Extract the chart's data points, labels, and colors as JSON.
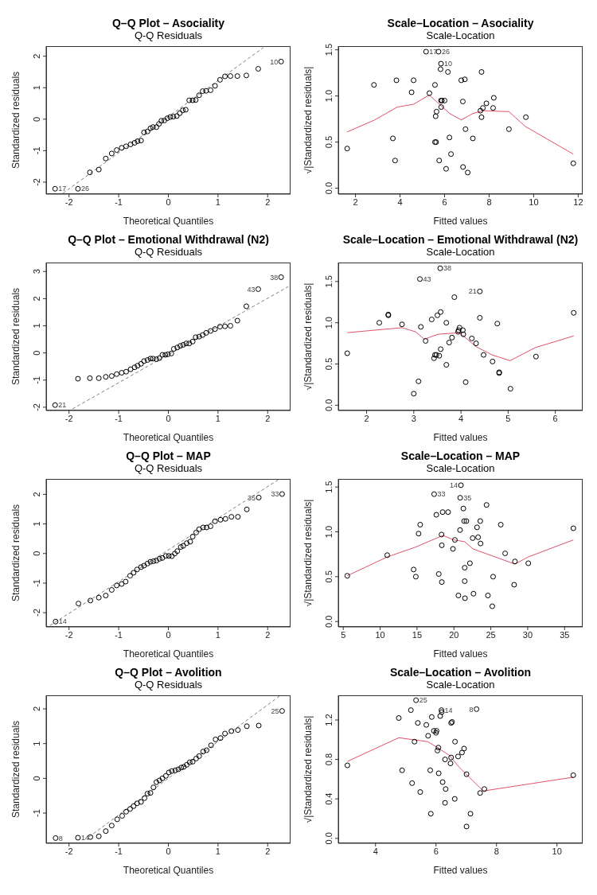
{
  "chart_data": [
    {
      "type": "scatter",
      "title": "Q–Q Plot – Asociality",
      "subtitle": "Q-Q Residuals",
      "xlabel": "Theoretical Quantiles",
      "ylabel": "Standardized residuals",
      "xlim": [
        -2.46,
        2.46
      ],
      "ylim": [
        -2.38,
        2.32
      ],
      "xticks": [
        -2,
        -1,
        0,
        1,
        2
      ],
      "yticks": [
        -2,
        -1,
        0,
        1,
        2
      ],
      "marker": "circle",
      "series": [
        {
          "type": "scatter",
          "color": "#000000",
          "x": [
            -2.28,
            -1.82,
            -1.58,
            -1.4,
            -1.26,
            -1.14,
            -1.04,
            -0.94,
            -0.85,
            -0.76,
            -0.68,
            -0.62,
            -0.55,
            -0.49,
            -0.42,
            -0.36,
            -0.31,
            -0.24,
            -0.19,
            -0.14,
            -0.08,
            -0.02,
            0.04,
            0.1,
            0.17,
            0.23,
            0.29,
            0.35,
            0.42,
            0.49,
            0.55,
            0.62,
            0.69,
            0.76,
            0.85,
            0.94,
            1.04,
            1.14,
            1.25,
            1.39,
            1.57,
            1.81,
            2.27
          ],
          "values": [
            -2.21,
            -2.21,
            -1.69,
            -1.6,
            -1.25,
            -1.09,
            -0.98,
            -0.91,
            -0.86,
            -0.8,
            -0.75,
            -0.7,
            -0.68,
            -0.42,
            -0.39,
            -0.29,
            -0.25,
            -0.25,
            -0.15,
            -0.05,
            -0.04,
            0.03,
            0.07,
            0.08,
            0.1,
            0.19,
            0.28,
            0.3,
            0.6,
            0.6,
            0.61,
            0.76,
            0.89,
            0.9,
            0.92,
            1.06,
            1.25,
            1.36,
            1.37,
            1.37,
            1.39,
            1.6,
            1.83
          ]
        },
        {
          "type": "line",
          "marker": "none",
          "color": "#808080",
          "line_style": "dashed",
          "x": [
            -2.12,
            1.91
          ],
          "values": [
            -2.35,
            2.27
          ]
        }
      ],
      "annotations": [
        {
          "text": "17",
          "x": -2.28,
          "y": -2.21
        },
        {
          "text": "26",
          "x": -1.82,
          "y": -2.21
        },
        {
          "text": "10",
          "x": 2.27,
          "y": 1.83
        }
      ]
    },
    {
      "type": "scatter",
      "title": "Scale–Location – Asociality",
      "subtitle": "Scale-Location",
      "xlabel": "Fitted values",
      "ylabel": "√|Standardized residuals|",
      "xlim": [
        1.23,
        12.2
      ],
      "ylim": [
        -0.064,
        1.54
      ],
      "xticks": [
        2,
        4,
        6,
        8,
        10,
        12
      ],
      "yticks": [
        {
          "value": 0,
          "label": "0.0"
        },
        {
          "value": 0.5,
          "label": "0.5"
        },
        {
          "value": 1,
          "label": "1.0"
        },
        {
          "value": 1.5,
          "label": "1.5"
        }
      ],
      "marker": "circle",
      "series": [
        {
          "type": "scatter",
          "color": "#000000",
          "x": [
            1.63,
            2.83,
            3.68,
            3.78,
            3.84,
            4.52,
            4.61,
            5.32,
            5.17,
            5.73,
            5.84,
            5.82,
            5.57,
            5.64,
            5.6,
            5.57,
            5.62,
            5.76,
            5.84,
            5.88,
            6.0,
            5.85,
            6.15,
            6.07,
            6.22,
            6.29,
            6.75,
            6.91,
            6.82,
            6.83,
            6.94,
            7.04,
            7.27,
            7.66,
            7.61,
            7.66,
            7.72,
            7.88,
            8.18,
            8.21,
            8.89,
            9.65,
            11.78
          ],
          "values": [
            0.43,
            1.12,
            0.54,
            0.3,
            1.17,
            1.04,
            1.17,
            1.03,
            1.48,
            1.48,
            1.35,
            1.29,
            1.12,
            0.83,
            0.78,
            0.5,
            0.5,
            0.3,
            0.95,
            0.95,
            0.95,
            0.88,
            1.26,
            0.21,
            0.55,
            0.37,
            1.17,
            1.18,
            0.94,
            0.23,
            0.64,
            0.17,
            0.54,
            1.26,
            0.84,
            0.77,
            0.87,
            0.92,
            0.87,
            0.98,
            0.64,
            0.77,
            0.27
          ]
        },
        {
          "type": "line",
          "marker": "none",
          "color": "#df536b",
          "x": [
            1.63,
            2.86,
            3.88,
            4.61,
            5.31,
            6.23,
            6.75,
            7.27,
            7.74,
            8.89,
            9.62,
            11.78
          ],
          "values": [
            0.61,
            0.74,
            0.88,
            0.91,
            1.01,
            0.81,
            0.74,
            0.81,
            0.84,
            0.83,
            0.67,
            0.37
          ]
        }
      ],
      "annotations": [
        {
          "text": "17",
          "x": 5.17,
          "y": 1.48
        },
        {
          "text": "26",
          "x": 5.73,
          "y": 1.48
        },
        {
          "text": "10",
          "x": 5.84,
          "y": 1.35
        }
      ]
    },
    {
      "type": "scatter",
      "title": "Q–Q Plot – Emotional Withdrawal (N2)",
      "subtitle": "Q-Q Residuals",
      "xlabel": "Theoretical Quantiles",
      "ylabel": "Standardized residuals",
      "xlim": [
        -2.46,
        2.46
      ],
      "ylim": [
        -2.12,
        3.33
      ],
      "xticks": [
        -2,
        -1,
        0,
        1,
        2
      ],
      "yticks": [
        -2,
        -1,
        0,
        1,
        2,
        3
      ],
      "marker": "circle",
      "series": [
        {
          "type": "scatter",
          "color": "#000000",
          "x": [
            -2.28,
            -1.82,
            -1.58,
            -1.4,
            -1.26,
            -1.14,
            -1.04,
            -0.94,
            -0.85,
            -0.76,
            -0.68,
            -0.62,
            -0.55,
            -0.49,
            -0.42,
            -0.36,
            -0.31,
            -0.24,
            -0.18,
            -0.12,
            -0.06,
            -0.01,
            0.06,
            0.11,
            0.18,
            0.24,
            0.3,
            0.36,
            0.42,
            0.49,
            0.55,
            0.62,
            0.69,
            0.76,
            0.85,
            0.94,
            1.04,
            1.14,
            1.25,
            1.39,
            1.57,
            1.81,
            2.27
          ],
          "values": [
            -1.92,
            -0.95,
            -0.93,
            -0.93,
            -0.88,
            -0.85,
            -0.78,
            -0.73,
            -0.69,
            -0.6,
            -0.53,
            -0.47,
            -0.4,
            -0.3,
            -0.26,
            -0.21,
            -0.21,
            -0.23,
            -0.19,
            -0.07,
            -0.07,
            -0.05,
            -0.02,
            0.15,
            0.2,
            0.26,
            0.3,
            0.35,
            0.35,
            0.42,
            0.58,
            0.6,
            0.66,
            0.74,
            0.81,
            0.88,
            0.97,
            0.98,
            1.0,
            1.19,
            1.72,
            2.35,
            2.79
          ]
        },
        {
          "type": "line",
          "marker": "none",
          "color": "#808080",
          "line_style": "dashed",
          "x": [
            -1.93,
            2.45
          ],
          "values": [
            -2.06,
            2.48
          ]
        }
      ],
      "annotations": [
        {
          "text": "21",
          "x": -2.28,
          "y": -1.92
        },
        {
          "text": "43",
          "x": 1.81,
          "y": 2.35
        },
        {
          "text": "38",
          "x": 2.27,
          "y": 2.79
        }
      ]
    },
    {
      "type": "scatter",
      "title": "Scale–Location – Emotional Withdrawal (N2)",
      "subtitle": "Scale-Location",
      "xlabel": "Fitted values",
      "ylabel": "√|Standardized residuals|",
      "xlim": [
        1.4,
        6.58
      ],
      "ylim": [
        -0.064,
        1.73
      ],
      "xticks": [
        2,
        3,
        4,
        5,
        6
      ],
      "yticks": [
        {
          "value": 0,
          "label": "0.0"
        },
        {
          "value": 0.5,
          "label": "0.5"
        },
        {
          "value": 1,
          "label": "1.0"
        },
        {
          "value": 1.5,
          "label": "1.5"
        }
      ],
      "marker": "circle",
      "series": [
        {
          "type": "scatter",
          "color": "#000000",
          "x": [
            1.59,
            2.27,
            2.46,
            2.46,
            2.75,
            3.0,
            3.1,
            3.13,
            3.15,
            3.25,
            3.38,
            3.43,
            3.45,
            3.48,
            3.5,
            3.54,
            3.56,
            3.57,
            3.57,
            3.69,
            3.69,
            3.75,
            3.81,
            3.86,
            3.94,
            3.95,
            3.97,
            4.04,
            4.05,
            4.1,
            4.23,
            4.32,
            4.4,
            4.4,
            4.48,
            4.67,
            4.77,
            4.81,
            4.81,
            5.05,
            5.59,
            6.39
          ],
          "values": [
            0.63,
            1.0,
            1.09,
            1.1,
            0.98,
            0.14,
            0.29,
            1.53,
            0.95,
            0.78,
            1.04,
            0.57,
            0.61,
            0.61,
            1.09,
            0.6,
            1.66,
            1.13,
            0.68,
            1.0,
            0.49,
            0.76,
            0.82,
            1.31,
            0.89,
            0.91,
            0.94,
            0.91,
            0.86,
            0.28,
            0.81,
            0.75,
            1.38,
            1.06,
            0.61,
            0.53,
            0.99,
            0.4,
            0.39,
            0.2,
            0.59,
            1.12
          ]
        },
        {
          "type": "line",
          "marker": "none",
          "color": "#df536b",
          "x": [
            1.59,
            2.75,
            3.04,
            3.22,
            3.51,
            3.97,
            4.32,
            4.66,
            5.04,
            5.58,
            6.39
          ],
          "values": [
            0.88,
            0.94,
            0.89,
            0.8,
            0.86,
            0.88,
            0.71,
            0.61,
            0.54,
            0.7,
            0.84
          ]
        }
      ],
      "annotations": [
        {
          "text": "43",
          "x": 3.13,
          "y": 1.53
        },
        {
          "text": "38",
          "x": 3.56,
          "y": 1.66
        },
        {
          "text": "21",
          "x": 4.4,
          "y": 1.38
        }
      ]
    },
    {
      "type": "scatter",
      "title": "Q–Q Plot – MAP",
      "subtitle": "Q-Q Residuals",
      "xlabel": "Theoretical Quantiles",
      "ylabel": "Standardized residuals",
      "xlim": [
        -2.46,
        2.46
      ],
      "ylim": [
        -2.48,
        2.52
      ],
      "xticks": [
        -2,
        -1,
        0,
        1,
        2
      ],
      "yticks": [
        -2,
        -1,
        0,
        1,
        2
      ],
      "marker": "circle",
      "series": [
        {
          "type": "scatter",
          "color": "#000000",
          "x": [
            -2.27,
            -1.81,
            -1.57,
            -1.4,
            -1.26,
            -1.14,
            -1.04,
            -0.94,
            -0.86,
            -0.77,
            -0.7,
            -0.63,
            -0.55,
            -0.49,
            -0.42,
            -0.36,
            -0.3,
            -0.24,
            -0.18,
            -0.12,
            -0.05,
            0.01,
            0.07,
            0.13,
            0.18,
            0.25,
            0.3,
            0.37,
            0.44,
            0.49,
            0.56,
            0.62,
            0.7,
            0.77,
            0.85,
            0.94,
            1.05,
            1.15,
            1.27,
            1.4,
            1.58,
            1.82,
            2.29
          ],
          "values": [
            -2.3,
            -1.69,
            -1.59,
            -1.49,
            -1.42,
            -1.23,
            -1.08,
            -1.03,
            -0.95,
            -0.75,
            -0.65,
            -0.54,
            -0.46,
            -0.41,
            -0.34,
            -0.28,
            -0.26,
            -0.24,
            -0.18,
            -0.15,
            -0.08,
            -0.08,
            -0.09,
            0.0,
            0.08,
            0.22,
            0.26,
            0.35,
            0.4,
            0.57,
            0.71,
            0.82,
            0.88,
            0.88,
            0.92,
            1.09,
            1.14,
            1.17,
            1.24,
            1.24,
            1.49,
            1.89,
            2.01
          ]
        },
        {
          "type": "line",
          "marker": "none",
          "color": "#808080",
          "line_style": "dashed",
          "x": [
            -2.38,
            2.24
          ],
          "values": [
            -2.43,
            2.52
          ]
        }
      ],
      "annotations": [
        {
          "text": "14",
          "x": -2.27,
          "y": -2.3
        },
        {
          "text": "35",
          "x": 1.82,
          "y": 1.89
        },
        {
          "text": "33",
          "x": 2.29,
          "y": 2.01
        }
      ]
    },
    {
      "type": "scatter",
      "title": "Scale–Location – MAP",
      "subtitle": "Scale-Location",
      "xlabel": "Fitted values",
      "ylabel": "√|Standardized residuals|",
      "xlim": [
        4.33,
        37.45
      ],
      "ylim": [
        -0.06,
        1.59
      ],
      "xticks": [
        5,
        10,
        15,
        20,
        25,
        30,
        35
      ],
      "yticks": [
        {
          "value": 0,
          "label": "0.0"
        },
        {
          "value": 0.5,
          "label": "0.5"
        },
        {
          "value": 1,
          "label": "1.0"
        },
        {
          "value": 1.5,
          "label": "1.5"
        }
      ],
      "marker": "circle",
      "series": [
        {
          "type": "scatter",
          "color": "#000000",
          "x": [
            5.55,
            10.96,
            14.54,
            14.84,
            15.21,
            15.43,
            17.32,
            17.62,
            17.95,
            18.32,
            18.36,
            18.36,
            18.47,
            19.21,
            19.87,
            20.13,
            20.61,
            20.83,
            20.85,
            20.95,
            21.28,
            21.39,
            21.69,
            21.46,
            21.46,
            21.5,
            22.17,
            22.54,
            22.65,
            23.13,
            23.28,
            23.57,
            23.61,
            24.42,
            24.61,
            25.2,
            25.31,
            26.35,
            26.94,
            28.16,
            28.27,
            30.08,
            36.19
          ],
          "values": [
            0.51,
            0.74,
            0.58,
            0.5,
            0.98,
            1.08,
            1.42,
            1.19,
            0.53,
            0.97,
            0.85,
            0.44,
            1.22,
            1.22,
            0.81,
            0.91,
            0.29,
            1.02,
            1.38,
            1.52,
            1.26,
            1.12,
            1.12,
            0.6,
            0.45,
            0.26,
            0.65,
            0.93,
            0.31,
            1.05,
            0.94,
            1.12,
            0.87,
            1.3,
            0.29,
            0.17,
            0.5,
            1.08,
            0.76,
            0.41,
            0.67,
            0.65,
            1.04
          ]
        },
        {
          "type": "line",
          "marker": "none",
          "color": "#df536b",
          "x": [
            5.55,
            10.96,
            14.8,
            18.5,
            19.98,
            21.46,
            22.57,
            28.27,
            30.08,
            36.19
          ],
          "values": [
            0.51,
            0.72,
            0.83,
            0.96,
            0.91,
            0.89,
            0.81,
            0.64,
            0.72,
            0.91
          ]
        }
      ],
      "annotations": [
        {
          "text": "33",
          "x": 17.32,
          "y": 1.42
        },
        {
          "text": "35",
          "x": 20.85,
          "y": 1.38
        },
        {
          "text": "14",
          "x": 20.95,
          "y": 1.52
        }
      ]
    },
    {
      "type": "scatter",
      "title": "Q–Q Plot – Avolition",
      "subtitle": "Q-Q Residuals",
      "xlabel": "Theoretical Quantiles",
      "ylabel": "Standardized residuals",
      "xlim": [
        -2.46,
        2.46
      ],
      "ylim": [
        -1.87,
        2.39
      ],
      "xticks": [
        -2,
        -1,
        0,
        1,
        2
      ],
      "yticks": [
        -1,
        0,
        1,
        2
      ],
      "marker": "circle",
      "series": [
        {
          "type": "scatter",
          "color": "#000000",
          "x": [
            -2.27,
            -1.82,
            -1.57,
            -1.4,
            -1.26,
            -1.14,
            -1.03,
            -0.93,
            -0.85,
            -0.77,
            -0.7,
            -0.63,
            -0.55,
            -0.48,
            -0.42,
            -0.36,
            -0.3,
            -0.24,
            -0.18,
            -0.12,
            -0.05,
            0.01,
            0.07,
            0.14,
            0.2,
            0.26,
            0.31,
            0.37,
            0.43,
            0.49,
            0.56,
            0.62,
            0.7,
            0.77,
            0.86,
            0.95,
            1.05,
            1.14,
            1.27,
            1.4,
            1.58,
            1.82,
            2.29
          ],
          "values": [
            -1.72,
            -1.71,
            -1.69,
            -1.67,
            -1.52,
            -1.36,
            -1.18,
            -1.08,
            -0.96,
            -0.88,
            -0.8,
            -0.72,
            -0.68,
            -0.57,
            -0.44,
            -0.42,
            -0.26,
            -0.11,
            -0.06,
            0.0,
            0.07,
            0.17,
            0.21,
            0.23,
            0.26,
            0.31,
            0.33,
            0.39,
            0.46,
            0.48,
            0.57,
            0.64,
            0.77,
            0.81,
            0.95,
            1.12,
            1.16,
            1.29,
            1.36,
            1.39,
            1.5,
            1.52,
            1.94
          ]
        },
        {
          "type": "line",
          "marker": "none",
          "color": "#808080",
          "line_style": "dashed",
          "x": [
            -1.6,
            2.24
          ],
          "values": [
            -1.69,
            2.37
          ]
        }
      ],
      "annotations": [
        {
          "text": "8",
          "x": -2.27,
          "y": -1.72
        },
        {
          "text": "14",
          "x": -1.82,
          "y": -1.71
        },
        {
          "text": "25",
          "x": 2.29,
          "y": 1.94
        }
      ]
    },
    {
      "type": "scatter",
      "title": "Scale–Location – Avolition",
      "subtitle": "Scale-Location",
      "xlabel": "Fitted values",
      "ylabel": "√|Standardized residuals|",
      "xlim": [
        2.77,
        10.85
      ],
      "ylim": [
        -0.05,
        1.45
      ],
      "xticks": [
        4,
        6,
        8,
        10
      ],
      "yticks": [
        {
          "value": 0,
          "label": "0.0"
        },
        {
          "value": 0.4,
          "label": "0.4"
        },
        {
          "value": 0.8,
          "label": "0.8"
        },
        {
          "value": 1.2,
          "label": "1.2"
        }
      ],
      "marker": "circle",
      "series": [
        {
          "type": "scatter",
          "color": "#000000",
          "x": [
            3.07,
            4.77,
            4.88,
            5.17,
            5.21,
            5.29,
            5.34,
            5.4,
            5.48,
            5.68,
            5.74,
            5.81,
            5.83,
            5.86,
            5.93,
            6.0,
            6.02,
            6.05,
            6.08,
            6.09,
            6.14,
            6.18,
            6.19,
            6.22,
            6.3,
            6.32,
            6.3,
            6.48,
            6.5,
            6.5,
            6.53,
            6.62,
            6.63,
            6.73,
            6.86,
            6.93,
            7.01,
            7.01,
            7.14,
            7.34,
            7.46,
            7.6,
            10.54
          ],
          "values": [
            0.74,
            1.22,
            0.69,
            1.3,
            0.56,
            0.98,
            1.4,
            1.17,
            0.47,
            1.15,
            1.04,
            0.69,
            0.25,
            1.23,
            1.09,
            1.07,
            1.09,
            0.89,
            0.92,
            0.66,
            1.24,
            1.3,
            1.28,
            0.57,
            0.8,
            0.5,
            0.36,
            0.76,
            0.82,
            1.17,
            1.18,
            0.4,
            0.98,
            0.83,
            0.87,
            0.91,
            0.65,
            0.12,
            0.25,
            1.31,
            0.46,
            0.5,
            0.64
          ]
        },
        {
          "type": "line",
          "marker": "none",
          "color": "#df536b",
          "x": [
            3.07,
            4.77,
            5.73,
            6.05,
            6.45,
            6.77,
            7.56,
            10.54
          ],
          "values": [
            0.78,
            1.02,
            0.98,
            0.92,
            0.84,
            0.72,
            0.48,
            0.62
          ]
        }
      ],
      "annotations": [
        {
          "text": "25",
          "x": 5.34,
          "y": 1.4
        },
        {
          "text": "14",
          "x": 6.18,
          "y": 1.3
        },
        {
          "text": "8",
          "x": 7.34,
          "y": 1.31
        }
      ]
    }
  ]
}
